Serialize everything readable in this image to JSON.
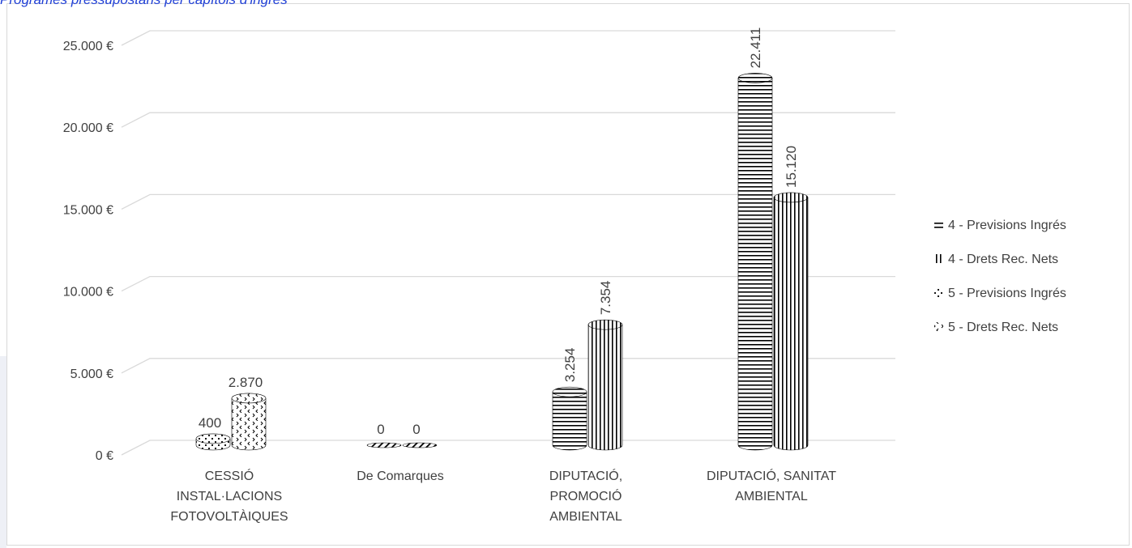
{
  "page": {
    "title": "Programes pressupostaris per capítols d'ingrés"
  },
  "chart_data": {
    "type": "bar",
    "title": "",
    "xlabel": "",
    "ylabel": "",
    "ylim": [
      0,
      25000
    ],
    "y_ticks": [
      0,
      5000,
      10000,
      15000,
      20000,
      25000
    ],
    "y_tick_labels": [
      "0 €",
      "5.000 €",
      "10.000 €",
      "15.000 €",
      "20.000 €",
      "25.000 €"
    ],
    "grid": true,
    "legend_position": "right",
    "categories": [
      [
        "CESSIÓ",
        "INSTAL·LACIONS",
        "FOTOVOLTÀIQUES"
      ],
      [
        "De Comarques"
      ],
      [
        "DIPUTACIÓ,",
        "PROMOCIÓ",
        "AMBIENTAL"
      ],
      [
        "DIPUTACIÓ, SANITAT",
        "AMBIENTAL"
      ]
    ],
    "series": [
      {
        "name": "4 - Previsions Ingrés",
        "pattern": "horizontal-stripes",
        "values": [
          null,
          0,
          3254,
          22411
        ],
        "labels": [
          "",
          "0",
          "3.254",
          "22.411"
        ]
      },
      {
        "name": "4 - Drets Rec. Nets",
        "pattern": "vertical-stripes",
        "values": [
          null,
          null,
          7354,
          15120
        ],
        "labels": [
          "",
          "",
          "7.354",
          "15.120"
        ]
      },
      {
        "name": "5 - Previsions Ingrés",
        "pattern": "dots",
        "values": [
          400,
          null,
          null,
          null
        ],
        "labels": [
          "400",
          "",
          "",
          ""
        ]
      },
      {
        "name": "5 - Drets Rec. Nets",
        "pattern": "chevrons",
        "values": [
          2870,
          0,
          null,
          null
        ],
        "labels": [
          "2.870",
          "0",
          "",
          ""
        ]
      }
    ]
  }
}
